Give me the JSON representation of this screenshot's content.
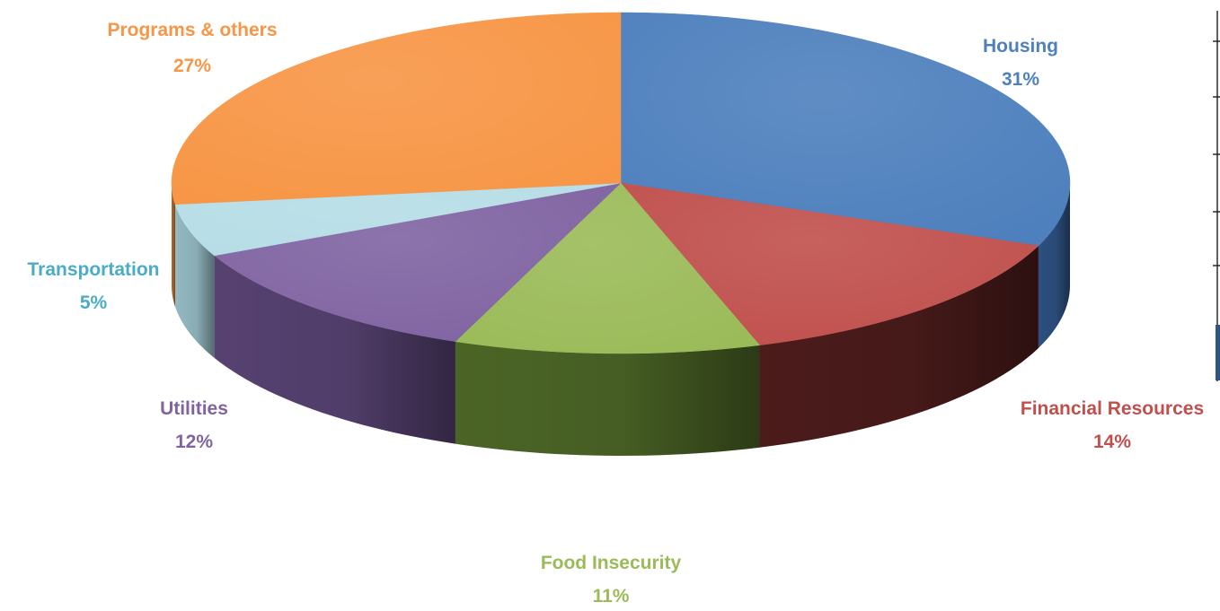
{
  "chart_data": {
    "type": "pie",
    "style": "3d",
    "start_angle_deg": 0,
    "direction": "clockwise",
    "slices": [
      {
        "name": "Housing",
        "value": 31,
        "label": "31%",
        "color": "#4e80bd",
        "side_color": "#2f5486"
      },
      {
        "name": "Financial Resources",
        "value": 14,
        "label": "14%",
        "color": "#c0504d",
        "side_color": "#4f1d1c"
      },
      {
        "name": "Food Insecurity",
        "value": 11,
        "label": "11%",
        "color": "#9bbb59",
        "side_color": "#4f6a28"
      },
      {
        "name": "Utilities",
        "value": 12,
        "label": "12%",
        "color": "#8064a2",
        "side_color": "#5b4577"
      },
      {
        "name": "Transportation",
        "value": 5,
        "label": "5%",
        "color": "#b6dde6",
        "side_color": "#9cc3cc",
        "label_color": "#4bacc6"
      },
      {
        "name": "Programs & others",
        "value": 27,
        "label": "27%",
        "color": "#f79646",
        "side_color": "#b96a2c"
      }
    ]
  }
}
